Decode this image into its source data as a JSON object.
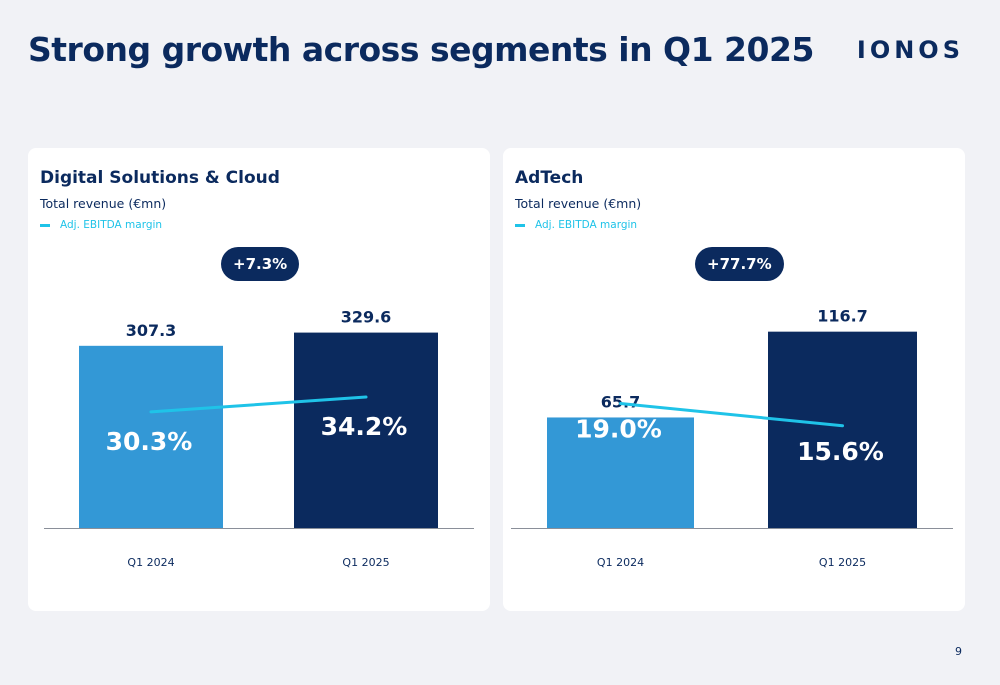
{
  "title": "Strong growth across segments in Q1 2025",
  "logo": "IONOS",
  "page_number": "9",
  "colors": {
    "navy": "#0b2a5e",
    "light_blue": "#3398d6",
    "cyan": "#1fc3e8",
    "background": "#f1f2f6"
  },
  "panels": [
    {
      "title": "Digital Solutions & Cloud",
      "subtitle": "Total revenue (€mn)",
      "legend_label": "Adj. EBITDA margin",
      "growth_badge": "+7.3%"
    },
    {
      "title": "AdTech",
      "subtitle": "Total revenue (€mn)",
      "legend_label": "Adj. EBITDA margin",
      "growth_badge": "+77.7%"
    }
  ],
  "chart_data": [
    {
      "type": "bar",
      "title": "Digital Solutions & Cloud",
      "ylabel": "Total revenue (€mn)",
      "categories": [
        "Q1 2024",
        "Q1 2025"
      ],
      "series": [
        {
          "name": "Total revenue (€mn)",
          "type": "bar",
          "values": [
            307.3,
            329.6
          ],
          "labels": [
            "307.3",
            "329.6"
          ],
          "colors": [
            "#3398d6",
            "#0b2a5e"
          ]
        },
        {
          "name": "Adj. EBITDA margin",
          "type": "line",
          "values": [
            30.3,
            34.2
          ],
          "labels": [
            "30.3%",
            "34.2%"
          ],
          "color": "#1fc3e8"
        }
      ],
      "annotations": [
        "+7.3%"
      ],
      "ylim": [
        0,
        420
      ],
      "margin_ylim": [
        0,
        65
      ],
      "grid": false,
      "legend": "top-left"
    },
    {
      "type": "bar",
      "title": "AdTech",
      "ylabel": "Total revenue (€mn)",
      "categories": [
        "Q1 2024",
        "Q1 2025"
      ],
      "series": [
        {
          "name": "Total revenue (€mn)",
          "type": "bar",
          "values": [
            65.7,
            116.7
          ],
          "labels": [
            "65.7",
            "116.7"
          ],
          "colors": [
            "#3398d6",
            "#0b2a5e"
          ]
        },
        {
          "name": "Adj. EBITDA margin",
          "type": "line",
          "values": [
            19.0,
            15.6
          ],
          "labels": [
            "19.0%",
            "15.6%"
          ],
          "color": "#1fc3e8"
        }
      ],
      "annotations": [
        "+77.7%"
      ],
      "ylim": [
        0,
        148
      ],
      "margin_ylim": [
        0,
        38
      ],
      "grid": false,
      "legend": "top-left"
    }
  ]
}
